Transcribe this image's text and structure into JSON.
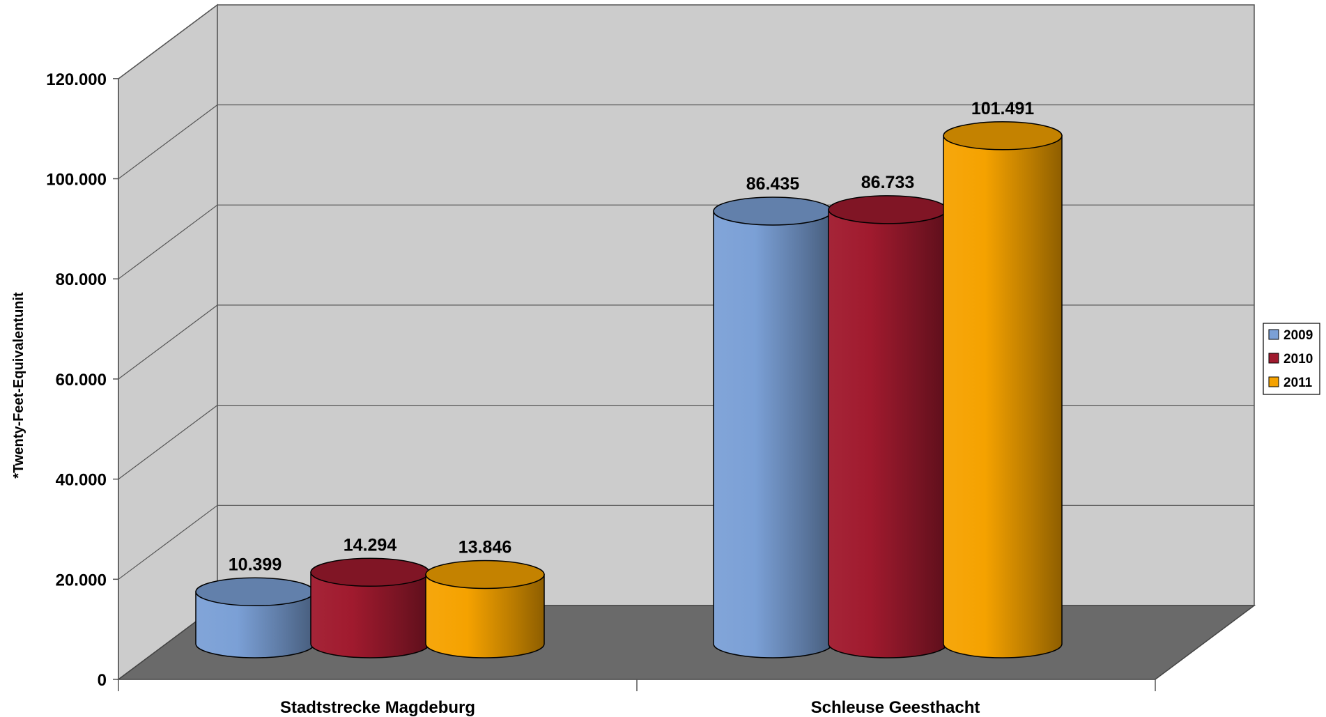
{
  "chart_data": {
    "type": "bar",
    "bar_shape": "cylinder-3d",
    "categories": [
      "Stadtstrecke Magdeburg",
      "Schleuse Geesthacht"
    ],
    "series": [
      {
        "name": "2009",
        "values": [
          10399,
          86435
        ],
        "labels": [
          "10.399",
          "86.435"
        ],
        "color": "#7ba0d6"
      },
      {
        "name": "2010",
        "values": [
          14294,
          86733
        ],
        "labels": [
          "14.294",
          "86.733"
        ],
        "color": "#a01a2e"
      },
      {
        "name": "2011",
        "values": [
          13846,
          101491
        ],
        "labels": [
          "13.846",
          "101.491"
        ],
        "color": "#f5a200"
      }
    ],
    "ylabel": "*Twenty-Feet-Equivalentunit",
    "ylim": [
      0,
      120000
    ],
    "yticks": [
      0,
      20000,
      40000,
      60000,
      80000,
      100000,
      120000
    ],
    "ytick_labels": [
      "0",
      "20.000",
      "40.000",
      "60.000",
      "80.000",
      "100.000",
      "120.000"
    ],
    "grid": true,
    "legend_position": "right",
    "colors": {
      "wall": "#cccccc",
      "floor": "#6a6a6a",
      "gridline": "#555555"
    }
  }
}
